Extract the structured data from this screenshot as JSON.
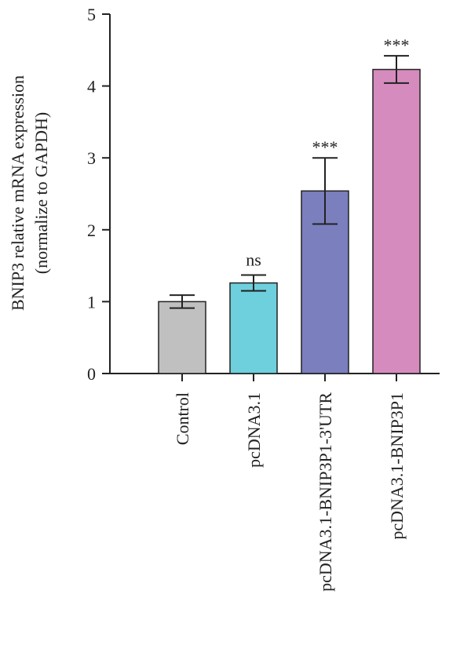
{
  "chart_data": {
    "type": "bar",
    "categories": [
      "Control",
      "pcDNA3.1",
      "pcDNA3.1-BNIP3P1-3'UTR",
      "pcDNA3.1-BNIP3P1"
    ],
    "values": [
      1.0,
      1.26,
      2.54,
      4.23
    ],
    "errors": [
      0.09,
      0.11,
      0.46,
      0.19
    ],
    "significance": [
      "",
      "ns",
      "***",
      "***"
    ],
    "colors": [
      "#c0c0c0",
      "#6ecfdd",
      "#7b7fbe",
      "#d58bbd"
    ],
    "ylabel_lines": [
      "BNIP3 relative mRNA expression",
      "(normalize to GAPDH)"
    ],
    "ylim": [
      0,
      5
    ],
    "yticks": [
      "0",
      "1",
      "2",
      "3",
      "4",
      "5"
    ],
    "grid": false
  }
}
